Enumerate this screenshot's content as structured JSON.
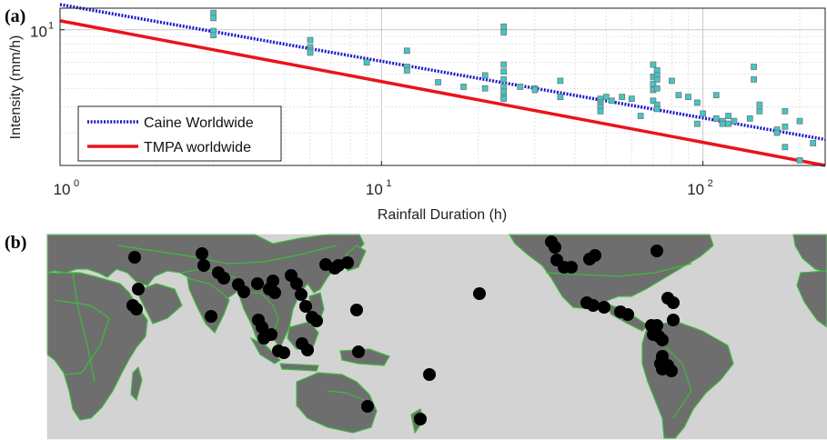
{
  "panel_a_label": "(a)",
  "panel_b_label": "(b)",
  "chart_data": {
    "type": "scatter",
    "xlabel": "Rainfall Duration (h)",
    "ylabel": "Intensity (mm/h)",
    "x_scale": "log",
    "y_scale": "log",
    "xlim": [
      1,
      240
    ],
    "ylim": [
      1.2,
      14
    ],
    "grid": true,
    "x_ticks": [
      {
        "value": 1,
        "base": "10",
        "exp": "0"
      },
      {
        "value": 10,
        "base": "10",
        "exp": "1"
      },
      {
        "value": 100,
        "base": "10",
        "exp": "2"
      }
    ],
    "y_ticks": [
      {
        "value": 10,
        "base": "10",
        "exp": "1"
      }
    ],
    "legend": {
      "placement": "bottom-left",
      "entries": [
        {
          "label": "Caine Worldwide",
          "color": "#1a1acc",
          "style": "dotted"
        },
        {
          "label": "TMPA worldwide",
          "color": "#e8141a",
          "style": "solid"
        }
      ]
    },
    "series": [
      {
        "name": "Caine Worldwide",
        "kind": "line",
        "color": "#1a1acc",
        "x": [
          1,
          240
        ],
        "y": [
          14.82,
          1.8
        ]
      },
      {
        "name": "TMPA worldwide",
        "kind": "line",
        "color": "#e8141a",
        "x": [
          1,
          240
        ],
        "y": [
          11.5,
          1.2
        ]
      }
    ],
    "points_color": "#40c8c8",
    "points": {
      "x": [
        3,
        3,
        3,
        3,
        6,
        6,
        6,
        6,
        9,
        12,
        12,
        12,
        15,
        18,
        21,
        21,
        24,
        24,
        24,
        24,
        24,
        24,
        24,
        24,
        24,
        27,
        30,
        30,
        36,
        36,
        48,
        48,
        48,
        48,
        48,
        50,
        52,
        56,
        60,
        64,
        70,
        70,
        70,
        70,
        70,
        72,
        72,
        72,
        72,
        72,
        72,
        80,
        84,
        90,
        96,
        96,
        100,
        110,
        110,
        115,
        115,
        120,
        120,
        125,
        140,
        144,
        144,
        150,
        150,
        170,
        170,
        180,
        180,
        180,
        200,
        200,
        220
      ],
      "y": [
        13,
        12,
        9.8,
        9.2,
        8.5,
        7.6,
        7.2,
        7.0,
        6.0,
        7.2,
        5.6,
        5.3,
        4.4,
        4.1,
        4.9,
        4.0,
        10.5,
        9.6,
        5.8,
        5.2,
        4.6,
        4.1,
        3.8,
        3.5,
        3.4,
        4.1,
        4.0,
        3.9,
        4.5,
        3.5,
        3.4,
        3.2,
        3.1,
        3.0,
        2.8,
        3.5,
        3.3,
        3.5,
        3.4,
        2.6,
        5.8,
        4.8,
        4.3,
        3.9,
        3.3,
        5.3,
        4.9,
        4.6,
        4.0,
        3.1,
        2.9,
        4.5,
        3.6,
        3.5,
        3.2,
        2.3,
        2.7,
        3.6,
        2.5,
        2.4,
        2.3,
        2.6,
        2.3,
        2.4,
        2.5,
        5.6,
        4.6,
        3.1,
        2.8,
        2.1,
        2.0,
        2.8,
        2.2,
        1.6,
        2.4,
        1.3,
        1.7
      ]
    }
  },
  "map": {
    "ocean_color": "#d3d3d3",
    "land_color": "#6e6e6e",
    "border_color": "#3dbb3d",
    "marker_color": "#000000"
  }
}
